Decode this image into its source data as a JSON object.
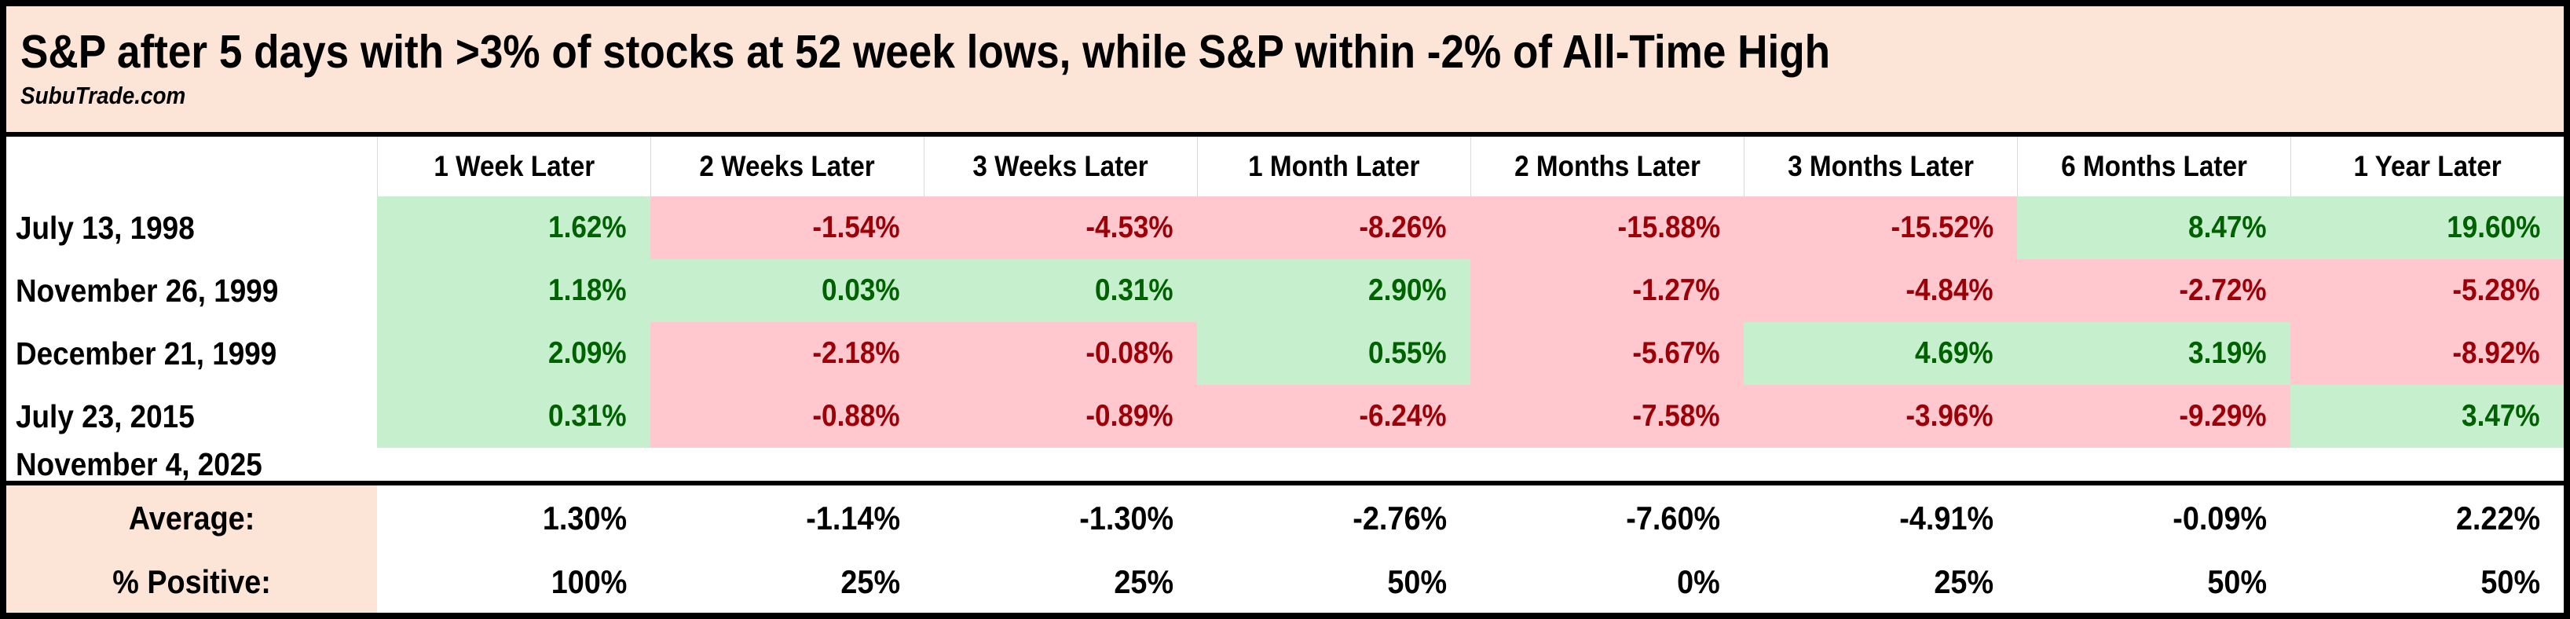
{
  "header": {
    "title": "S&P after 5 days with >3% of stocks at 52 week lows, while S&P within -2% of All-Time High",
    "subtitle": "SubuTrade.com"
  },
  "table": {
    "columns": [
      "1 Week Later",
      "2 Weeks Later",
      "3 Weeks Later",
      "1 Month Later",
      "2 Months Later",
      "3 Months Later",
      "6 Months Later",
      "1 Year Later"
    ],
    "rows": [
      {
        "label": "July 13, 1998",
        "values": [
          "1.62%",
          "-1.54%",
          "-4.53%",
          "-8.26%",
          "-15.88%",
          "-15.52%",
          "8.47%",
          "19.60%"
        ]
      },
      {
        "label": "November 26, 1999",
        "values": [
          "1.18%",
          "0.03%",
          "0.31%",
          "2.90%",
          "-1.27%",
          "-4.84%",
          "-2.72%",
          "-5.28%"
        ]
      },
      {
        "label": "December 21, 1999",
        "values": [
          "2.09%",
          "-2.18%",
          "-0.08%",
          "0.55%",
          "-5.67%",
          "4.69%",
          "3.19%",
          "-8.92%"
        ]
      },
      {
        "label": "July 23, 2015",
        "values": [
          "0.31%",
          "-0.88%",
          "-0.89%",
          "-6.24%",
          "-7.58%",
          "-3.96%",
          "-9.29%",
          "3.47%"
        ]
      },
      {
        "label": "November 4, 2025",
        "values": [
          "",
          "",
          "",
          "",
          "",
          "",
          "",
          ""
        ]
      }
    ],
    "summary": [
      {
        "label": "Average:",
        "values": [
          "1.30%",
          "-1.14%",
          "-1.30%",
          "-2.76%",
          "-7.60%",
          "-4.91%",
          "-0.09%",
          "2.22%"
        ]
      },
      {
        "label": "% Positive:",
        "values": [
          "100%",
          "25%",
          "25%",
          "50%",
          "0%",
          "25%",
          "50%",
          "50%"
        ]
      }
    ]
  },
  "colors": {
    "title_bg": "#FCE4D6",
    "summary_label_bg": "#FCE4D6",
    "positive_bg": "#C6EFCE",
    "positive_text": "#006100",
    "negative_bg": "#FFC7CE",
    "negative_text": "#9C0006",
    "border": "#000000"
  },
  "chart_data": {
    "type": "table",
    "title": "S&P after 5 days with >3% of stocks at 52 week lows, while S&P within -2% of All-Time High",
    "source_label": "SubuTrade.com",
    "columns": [
      "1 Week Later",
      "2 Weeks Later",
      "3 Weeks Later",
      "1 Month Later",
      "2 Months Later",
      "3 Months Later",
      "6 Months Later",
      "1 Year Later"
    ],
    "unit": "percent",
    "rows": [
      {
        "date": "July 13, 1998",
        "values": [
          1.62,
          -1.54,
          -4.53,
          -8.26,
          -15.88,
          -15.52,
          8.47,
          19.6
        ]
      },
      {
        "date": "November 26, 1999",
        "values": [
          1.18,
          0.03,
          0.31,
          2.9,
          -1.27,
          -4.84,
          -2.72,
          -5.28
        ]
      },
      {
        "date": "December 21, 1999",
        "values": [
          2.09,
          -2.18,
          -0.08,
          0.55,
          -5.67,
          4.69,
          3.19,
          -8.92
        ]
      },
      {
        "date": "July 23, 2015",
        "values": [
          0.31,
          -0.88,
          -0.89,
          -6.24,
          -7.58,
          -3.96,
          -9.29,
          3.47
        ]
      },
      {
        "date": "November 4, 2025",
        "values": [
          null,
          null,
          null,
          null,
          null,
          null,
          null,
          null
        ]
      }
    ],
    "average": [
      1.3,
      -1.14,
      -1.3,
      -2.76,
      -7.6,
      -4.91,
      -0.09,
      2.22
    ],
    "percent_positive": [
      100,
      25,
      25,
      50,
      0,
      25,
      50,
      50
    ],
    "cell_shading": "green background for positive returns, pink background for negative returns"
  }
}
